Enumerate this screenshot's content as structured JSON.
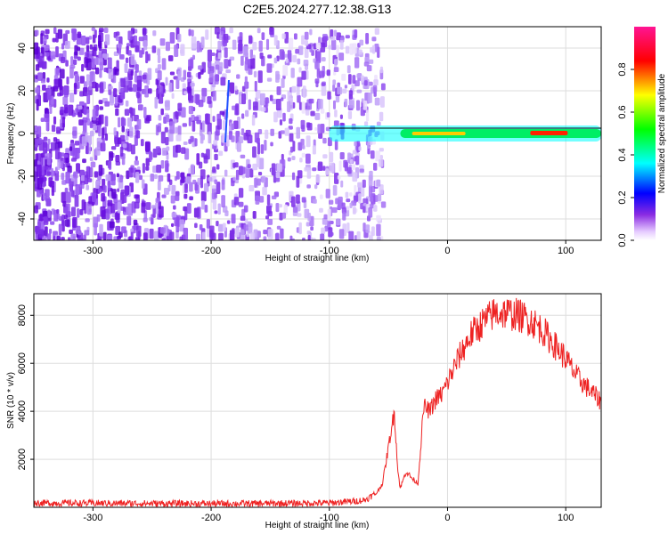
{
  "title": "C2E5.2024.277.12.38.G13",
  "colors": {
    "snr_line": "#ee2222",
    "spec_low": "#8a2be2",
    "spec_high": "#ff0000"
  },
  "chart_data": [
    {
      "type": "heatmap",
      "xlabel": "Height of straight line (km)",
      "ylabel": "Frequency (Hz)",
      "xlim": [
        -350,
        130
      ],
      "ylim": [
        -50,
        50
      ],
      "xticks": [
        -300,
        -200,
        -100,
        0,
        100
      ],
      "xtick_labels": [
        "-300",
        "-200",
        "-100",
        "0",
        "100"
      ],
      "yticks": [
        -40,
        -20,
        0,
        20,
        40
      ],
      "ytick_labels": [
        "-40",
        "-20",
        "0",
        "20",
        "40"
      ],
      "colorbar": {
        "label": "Normalized spectral amplitude",
        "range": [
          0,
          1
        ],
        "ticks": [
          0.0,
          0.2,
          0.4,
          0.6,
          0.8
        ],
        "tick_labels": [
          "0.0",
          "0.2",
          "0.4",
          "0.6",
          "0.8"
        ],
        "colormap": "rainbow"
      },
      "features": {
        "noise_region_km": [
          -350,
          -65
        ],
        "signal_center_freq_hz": 0,
        "strong_signal_km": [
          -40,
          130
        ]
      },
      "grid": true
    },
    {
      "type": "line",
      "xlabel": "Height of straight line (km)",
      "ylabel": "SNR (10 * v/v)",
      "xlim": [
        -350,
        130
      ],
      "ylim": [
        0,
        8900
      ],
      "xticks": [
        -300,
        -200,
        -100,
        0,
        100
      ],
      "xtick_labels": [
        "-300",
        "-200",
        "-100",
        "0",
        "100"
      ],
      "yticks": [
        2000,
        4000,
        6000,
        8000
      ],
      "ytick_labels": [
        "2000",
        "4000",
        "6000",
        "8000"
      ],
      "grid": true,
      "series": [
        {
          "x": [
            -350,
            -300,
            -250,
            -200,
            -150,
            -100,
            -80,
            -70,
            -60,
            -55,
            -50,
            -45,
            -42,
            -40,
            -35,
            -30,
            -25,
            -22,
            -20,
            -15,
            -10,
            -5,
            0,
            10,
            20,
            30,
            40,
            50,
            60,
            70,
            80,
            90,
            100,
            110,
            120,
            130
          ],
          "y": [
            180,
            170,
            160,
            150,
            160,
            180,
            250,
            300,
            600,
            1000,
            2500,
            4000,
            1500,
            800,
            1500,
            1200,
            1000,
            3000,
            4200,
            4000,
            4500,
            4700,
            5200,
            6300,
            7200,
            7700,
            8100,
            8100,
            8000,
            7800,
            7400,
            6800,
            6200,
            5400,
            4900,
            4400
          ]
        }
      ]
    }
  ]
}
